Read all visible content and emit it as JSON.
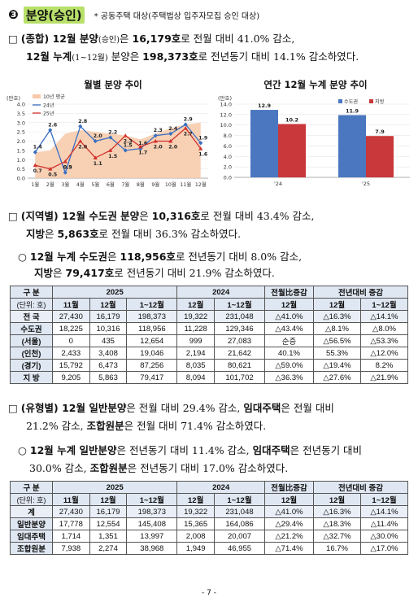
{
  "section": {
    "number": "❸",
    "title": "분양(승인)",
    "note": "* 공동주택 대상(주택법상 입주자모집 승인 대상)"
  },
  "para1": {
    "line1": {
      "bullet": "□",
      "lead": "(종합) 12월 분양",
      "sub": "(승인)",
      "mid": "은",
      "val": "16,179호",
      "rest": "로 전월 대비 41.0% 감소,"
    },
    "line2": {
      "lead": "12월 누계",
      "sub": "(1~12월)",
      "mid": " 분양은 ",
      "val": "198,373호",
      "rest": "로 전년동기 대비 14.1% 감소하였다."
    }
  },
  "chart1": {
    "title": "월별 분양 추이",
    "unit": "(만호)",
    "yticks": [
      "4.0",
      "3.5",
      "3.0",
      "2.5",
      "2.0",
      "1.5",
      "1.0",
      "0.5",
      "0.0"
    ],
    "legend": {
      "avg": "10년 평균",
      "y24": "24년",
      "y25": "25년"
    },
    "colors": {
      "avg": "#f7c9a8",
      "y24": "#3a6fc2",
      "y25": "#d0312d"
    }
  },
  "chart2": {
    "title": "연간 12월 누계 분양 추이",
    "unit": "(만호)",
    "yticks": [
      "14.0",
      "12.0",
      "10.0",
      "8.0",
      "6.0",
      "4.0",
      "2.0",
      "0.0"
    ],
    "legend": {
      "metro": "수도권",
      "local": "지방"
    },
    "colors": {
      "metro": "#4a77c0",
      "local": "#c9383a"
    }
  },
  "chart_data": [
    {
      "type": "line",
      "title": "월별 분양 추이",
      "ylabel": "(만호)",
      "ylim": [
        0,
        4.0
      ],
      "categories": [
        "1월",
        "2월",
        "3월",
        "4월",
        "5월",
        "6월",
        "7월",
        "8월",
        "9월",
        "10월",
        "11월",
        "12월"
      ],
      "series": [
        {
          "name": "10년 평균",
          "kind": "area",
          "values": [
            1.4,
            1.5,
            2.4,
            2.6,
            2.5,
            2.4,
            2.3,
            2.1,
            2.4,
            2.7,
            2.9,
            3.0
          ]
        },
        {
          "name": "24년",
          "values": [
            1.4,
            2.6,
            0.3,
            2.8,
            2.0,
            2.2,
            1.5,
            1.6,
            2.3,
            2.4,
            2.9,
            1.9
          ]
        },
        {
          "name": "25년",
          "values": [
            0.7,
            0.5,
            0.9,
            2.0,
            1.1,
            1.5,
            2.3,
            1.7,
            2.0,
            2.0,
            2.7,
            1.6
          ]
        }
      ]
    },
    {
      "type": "bar",
      "title": "연간 12월 누계 분양 추이",
      "ylabel": "(만호)",
      "ylim": [
        0,
        14.0
      ],
      "categories": [
        "'24",
        "'25"
      ],
      "series": [
        {
          "name": "수도권",
          "values": [
            12.9,
            11.9
          ]
        },
        {
          "name": "지방",
          "values": [
            10.2,
            7.9
          ]
        }
      ]
    }
  ],
  "para2": {
    "line1": {
      "bullet": "□",
      "lead": "(지역별) 12월 수도권 분양",
      "mid": "은 ",
      "val": "10,316호",
      "rest": "로 전월 대비 43.4% 감소,"
    },
    "line2": {
      "lead": "지방",
      "mid": "은 ",
      "val": "5,863호",
      "rest": "로 전월 대비 36.3% 감소하였다."
    }
  },
  "para3": {
    "line1": {
      "bullet": "○",
      "lead": "12월 누계 수도권",
      "mid": "은 ",
      "val": "118,956호",
      "rest": "로 전년동기 대비 8.0% 감소,"
    },
    "line2": {
      "lead": "지방",
      "mid": "은 ",
      "val": "79,417호",
      "rest": "로 전년동기 대비 21.9% 감소하였다."
    }
  },
  "table1": {
    "hdr": {
      "gubun": "구 분",
      "unit": "(단위: 호)",
      "y2025": "2025",
      "y2024": "2024",
      "mom": "전월比증감",
      "yoy": "전년대비 증감",
      "m11": "11월",
      "m12": "12월",
      "cum": "1~12월"
    },
    "rows": [
      {
        "label": "전 국",
        "c": [
          "27,430",
          "16,179",
          "198,373",
          "19,322",
          "231,048",
          "△41.0%",
          "△16.3%",
          "△14.1%"
        ]
      },
      {
        "label": "수도권",
        "c": [
          "18,225",
          "10,316",
          "118,956",
          "11,228",
          "129,346",
          "△43.4%",
          "△8.1%",
          "△8.0%"
        ]
      },
      {
        "label": "(서울)",
        "c": [
          "0",
          "435",
          "12,654",
          "999",
          "27,083",
          "순증",
          "△56.5%",
          "△53.3%"
        ]
      },
      {
        "label": "(인천)",
        "c": [
          "2,433",
          "3,408",
          "19,046",
          "2,194",
          "21,642",
          "40.1%",
          "55.3%",
          "△12.0%"
        ]
      },
      {
        "label": "(경기)",
        "c": [
          "15,792",
          "6,473",
          "87,256",
          "8,035",
          "80,621",
          "△59.0%",
          "△19.4%",
          "8.2%"
        ]
      },
      {
        "label": "지 방",
        "c": [
          "9,205",
          "5,863",
          "79,417",
          "8,094",
          "101,702",
          "△36.3%",
          "△27.6%",
          "△21.9%"
        ]
      }
    ]
  },
  "para4": {
    "line1": {
      "bullet": "□",
      "lead": "(유형별) 12월 일반분양",
      "mid": "은 전월 대비 29.4% 감소, ",
      "lead2": "임대주택",
      "rest": "은 전월 대비"
    },
    "line2": {
      "text": "21.2% 감소, ",
      "lead": "조합원분",
      "rest": "은 전월 대비 71.4% 감소하였다."
    }
  },
  "para5": {
    "line1": {
      "bullet": "○",
      "lead": "12월 누계 일반분양",
      "mid": "은 전년동기 대비 11.4% 감소, ",
      "lead2": "임대주택",
      "rest": "은 전년동기 대비"
    },
    "line2": {
      "text": "30.0% 감소, ",
      "lead": "조합원분",
      "rest": "은 전년동기 대비 17.0% 감소하였다."
    }
  },
  "table2": {
    "hdr": {
      "gubun": "구 분",
      "unit": "(단위: 호)",
      "y2025": "2025",
      "y2024": "2024",
      "mom": "전월比증감",
      "yoy": "전년대비 증감",
      "m11": "11월",
      "m12": "12월",
      "cum": "1~12월"
    },
    "rows": [
      {
        "label": "계",
        "c": [
          "27,430",
          "16,179",
          "198,373",
          "19,322",
          "231,048",
          "△41.0%",
          "△16.3%",
          "△14.1%"
        ]
      },
      {
        "label": "일반분양",
        "c": [
          "17,778",
          "12,554",
          "145,408",
          "15,365",
          "164,086",
          "△29.4%",
          "△18.3%",
          "△11.4%"
        ]
      },
      {
        "label": "임대주택",
        "c": [
          "1,714",
          "1,351",
          "13,997",
          "2,008",
          "20,007",
          "△21.2%",
          "△32.7%",
          "△30.0%"
        ]
      },
      {
        "label": "조합원분",
        "c": [
          "7,938",
          "2,274",
          "38,968",
          "1,949",
          "46,955",
          "△71.4%",
          "16.7%",
          "△17.0%"
        ]
      }
    ]
  },
  "footer": {
    "page": "- 7 -"
  }
}
